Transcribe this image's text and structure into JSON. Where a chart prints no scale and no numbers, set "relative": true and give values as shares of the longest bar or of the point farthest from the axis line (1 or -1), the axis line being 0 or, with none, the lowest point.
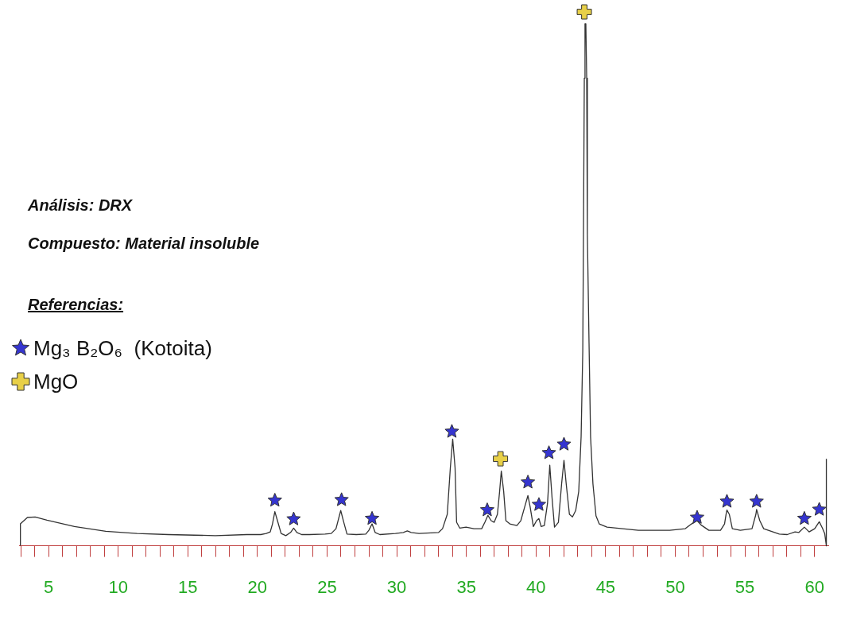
{
  "chart_data": {
    "type": "line",
    "relative": true,
    "annotations": [
      "Análisis: DRX",
      "Compuesto: Material insoluble"
    ],
    "legend_title": "Referencias:",
    "legend": "left",
    "grid": false,
    "xlim": [
      2.9,
      61
    ],
    "xticks": [
      {
        "value": 3,
        "label": null
      },
      {
        "value": 4,
        "label": null
      },
      5,
      {
        "value": 6,
        "label": null
      },
      {
        "value": 7,
        "label": null
      },
      {
        "value": 8,
        "label": null
      },
      {
        "value": 9,
        "label": null
      },
      10,
      {
        "value": 11,
        "label": null
      },
      {
        "value": 12,
        "label": null
      },
      {
        "value": 13,
        "label": null
      },
      {
        "value": 14,
        "label": null
      },
      15,
      {
        "value": 16,
        "label": null
      },
      {
        "value": 17,
        "label": null
      },
      {
        "value": 18,
        "label": null
      },
      {
        "value": 19,
        "label": null
      },
      20,
      {
        "value": 21,
        "label": null
      },
      {
        "value": 22,
        "label": null
      },
      {
        "value": 23,
        "label": null
      },
      {
        "value": 24,
        "label": null
      },
      25,
      {
        "value": 26,
        "label": null
      },
      {
        "value": 27,
        "label": null
      },
      {
        "value": 28,
        "label": null
      },
      {
        "value": 29,
        "label": null
      },
      30,
      {
        "value": 31,
        "label": null
      },
      {
        "value": 32,
        "label": null
      },
      {
        "value": 33,
        "label": null
      },
      {
        "value": 34,
        "label": null
      },
      35,
      {
        "value": 36,
        "label": null
      },
      {
        "value": 37,
        "label": null
      },
      {
        "value": 38,
        "label": null
      },
      {
        "value": 39,
        "label": null
      },
      40,
      {
        "value": 41,
        "label": null
      },
      {
        "value": 42,
        "label": null
      },
      {
        "value": 43,
        "label": null
      },
      {
        "value": 44,
        "label": null
      },
      45,
      {
        "value": 46,
        "label": null
      },
      {
        "value": 47,
        "label": null
      },
      {
        "value": 48,
        "label": null
      },
      {
        "value": 49,
        "label": null
      },
      50,
      {
        "value": 51,
        "label": null
      },
      {
        "value": 52,
        "label": null
      },
      {
        "value": 53,
        "label": null
      },
      {
        "value": 54,
        "label": null
      },
      55,
      {
        "value": 56,
        "label": null
      },
      {
        "value": 57,
        "label": null
      },
      {
        "value": 58,
        "label": null
      },
      {
        "value": 59,
        "label": null
      },
      60
    ],
    "series": [
      {
        "color": "#333333",
        "marker": "none",
        "x": [
          2.98,
          2.98,
          3.48,
          4.04,
          4.89,
          6.86,
          9.11,
          11.36,
          13.6,
          16.98,
          19.23,
          20.24,
          20.63,
          20.92,
          21.08,
          21.25,
          21.47,
          21.7,
          22.04,
          22.38,
          22.6,
          22.83,
          23.17,
          23.73,
          24.85,
          25.3,
          25.64,
          25.98,
          26.2,
          26.43,
          27.1,
          27.78,
          28,
          28.23,
          28.45,
          28.79,
          29.91,
          30.48,
          30.76,
          31.04,
          31.6,
          33.01,
          33.29,
          33.63,
          33.85,
          34.02,
          34.19,
          34.3,
          34.53,
          34.98,
          35.54,
          36.1,
          36.33,
          36.55,
          36.78,
          37,
          37.23,
          37.39,
          37.51,
          37.68,
          37.84,
          38.12,
          38.63,
          38.91,
          39.19,
          39.42,
          39.58,
          39.81,
          40.04,
          40.21,
          40.37,
          40.6,
          40.83,
          40.99,
          41.16,
          41.33,
          41.61,
          41.84,
          42.01,
          42.17,
          42.4,
          42.62,
          42.85,
          43.07,
          43.24,
          43.36,
          43.41,
          43.47,
          43.52,
          43.58,
          43.64,
          43.69,
          43.81,
          43.92,
          44.09,
          44.31,
          44.54,
          45.1,
          46.22,
          47.35,
          49.6,
          50.72,
          51.17,
          51.57,
          51.85,
          52.41,
          53.25,
          53.54,
          53.65,
          53.71,
          53.88,
          54.1,
          54.67,
          55.51,
          55.79,
          55.84,
          56.07,
          56.35,
          57.47,
          58.04,
          58.6,
          58.88,
          59.27,
          59.61,
          60.01,
          60.34,
          60.57,
          60.73,
          60.85,
          60.85
        ],
        "values": [
          0,
          0.041,
          0.053,
          0.054,
          0.048,
          0.036,
          0.027,
          0.023,
          0.021,
          0.019,
          0.021,
          0.021,
          0.023,
          0.026,
          0.041,
          0.064,
          0.044,
          0.023,
          0.019,
          0.025,
          0.033,
          0.025,
          0.021,
          0.021,
          0.022,
          0.023,
          0.032,
          0.066,
          0.044,
          0.022,
          0.021,
          0.022,
          0.029,
          0.041,
          0.025,
          0.021,
          0.023,
          0.025,
          0.028,
          0.025,
          0.023,
          0.025,
          0.032,
          0.059,
          0.146,
          0.2,
          0.146,
          0.044,
          0.033,
          0.035,
          0.032,
          0.032,
          0.044,
          0.057,
          0.047,
          0.044,
          0.059,
          0.102,
          0.14,
          0.102,
          0.047,
          0.041,
          0.038,
          0.047,
          0.073,
          0.094,
          0.073,
          0.036,
          0.047,
          0.051,
          0.036,
          0.038,
          0.08,
          0.151,
          0.088,
          0.035,
          0.044,
          0.116,
          0.16,
          0.116,
          0.059,
          0.054,
          0.066,
          0.102,
          0.204,
          0.365,
          0.584,
          0.876,
          0.978,
          0.978,
          0.876,
          0.584,
          0.379,
          0.204,
          0.116,
          0.056,
          0.041,
          0.035,
          0.032,
          0.029,
          0.029,
          0.032,
          0.041,
          0.047,
          0.039,
          0.029,
          0.029,
          0.041,
          0.059,
          0.067,
          0.059,
          0.032,
          0.029,
          0.032,
          0.059,
          0.068,
          0.047,
          0.032,
          0.022,
          0.021,
          0.026,
          0.025,
          0.035,
          0.026,
          0.032,
          0.045,
          0.033,
          0.023,
          0,
          0.163
        ]
      },
      {
        "type": "scatter",
        "name": "Mg₃ B₂O₆  (Kotoita)",
        "color": "#3535d0",
        "marker": "star",
        "x": [
          21.25,
          22.6,
          26.04,
          28.23,
          33.96,
          36.5,
          39.42,
          40.21,
          40.93,
          42.01,
          51.57,
          53.71,
          55.84,
          59.27,
          60.34
        ],
        "values": [
          0.085,
          0.05,
          0.086,
          0.051,
          0.214,
          0.067,
          0.119,
          0.077,
          0.174,
          0.19,
          0.053,
          0.083,
          0.083,
          0.051,
          0.068
        ]
      },
      {
        "type": "scatter",
        "name": "MgO",
        "color": "#e8d048",
        "marker": "cross",
        "x": [
          37.45,
          43.47
        ],
        "values": [
          0.163,
          1
        ]
      }
    ]
  }
}
